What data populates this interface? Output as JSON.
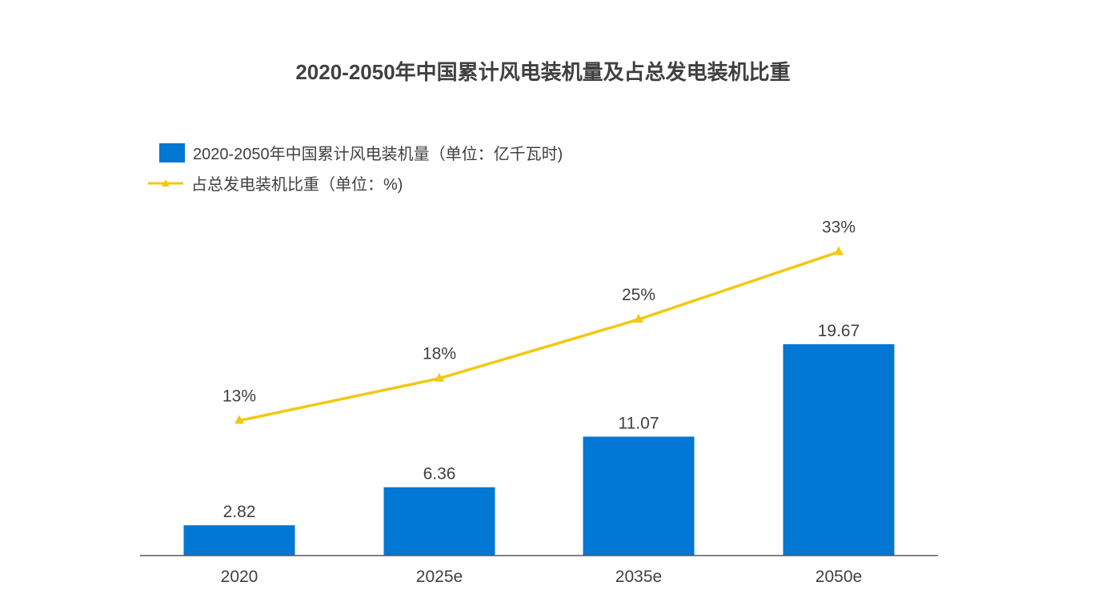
{
  "chart_data": {
    "type": "bar",
    "title": "2020-2050年中国累计风电装机量及占总发电装机比重",
    "categories": [
      "2020",
      "2025e",
      "2035e",
      "2050e"
    ],
    "series": [
      {
        "name": "2020-2050年中国累计风电装机量（单位：亿千瓦时)",
        "type": "bar",
        "values": [
          2.82,
          6.36,
          11.07,
          19.67
        ],
        "labels": [
          "2.82",
          "6.36",
          "11.07",
          "19.67"
        ],
        "color": "#0277d4",
        "ylim": [
          0,
          20
        ]
      },
      {
        "name": "占总发电装机比重（单位：%)",
        "type": "line",
        "values": [
          13,
          18,
          25,
          33
        ],
        "labels": [
          "13%",
          "18%",
          "25%",
          "33%"
        ],
        "color": "#f2c811",
        "ylim": [
          -3,
          38
        ]
      }
    ],
    "legend_position": "top-left",
    "grid": false
  },
  "colors": {
    "text": "#404040",
    "axis": "#595959"
  }
}
